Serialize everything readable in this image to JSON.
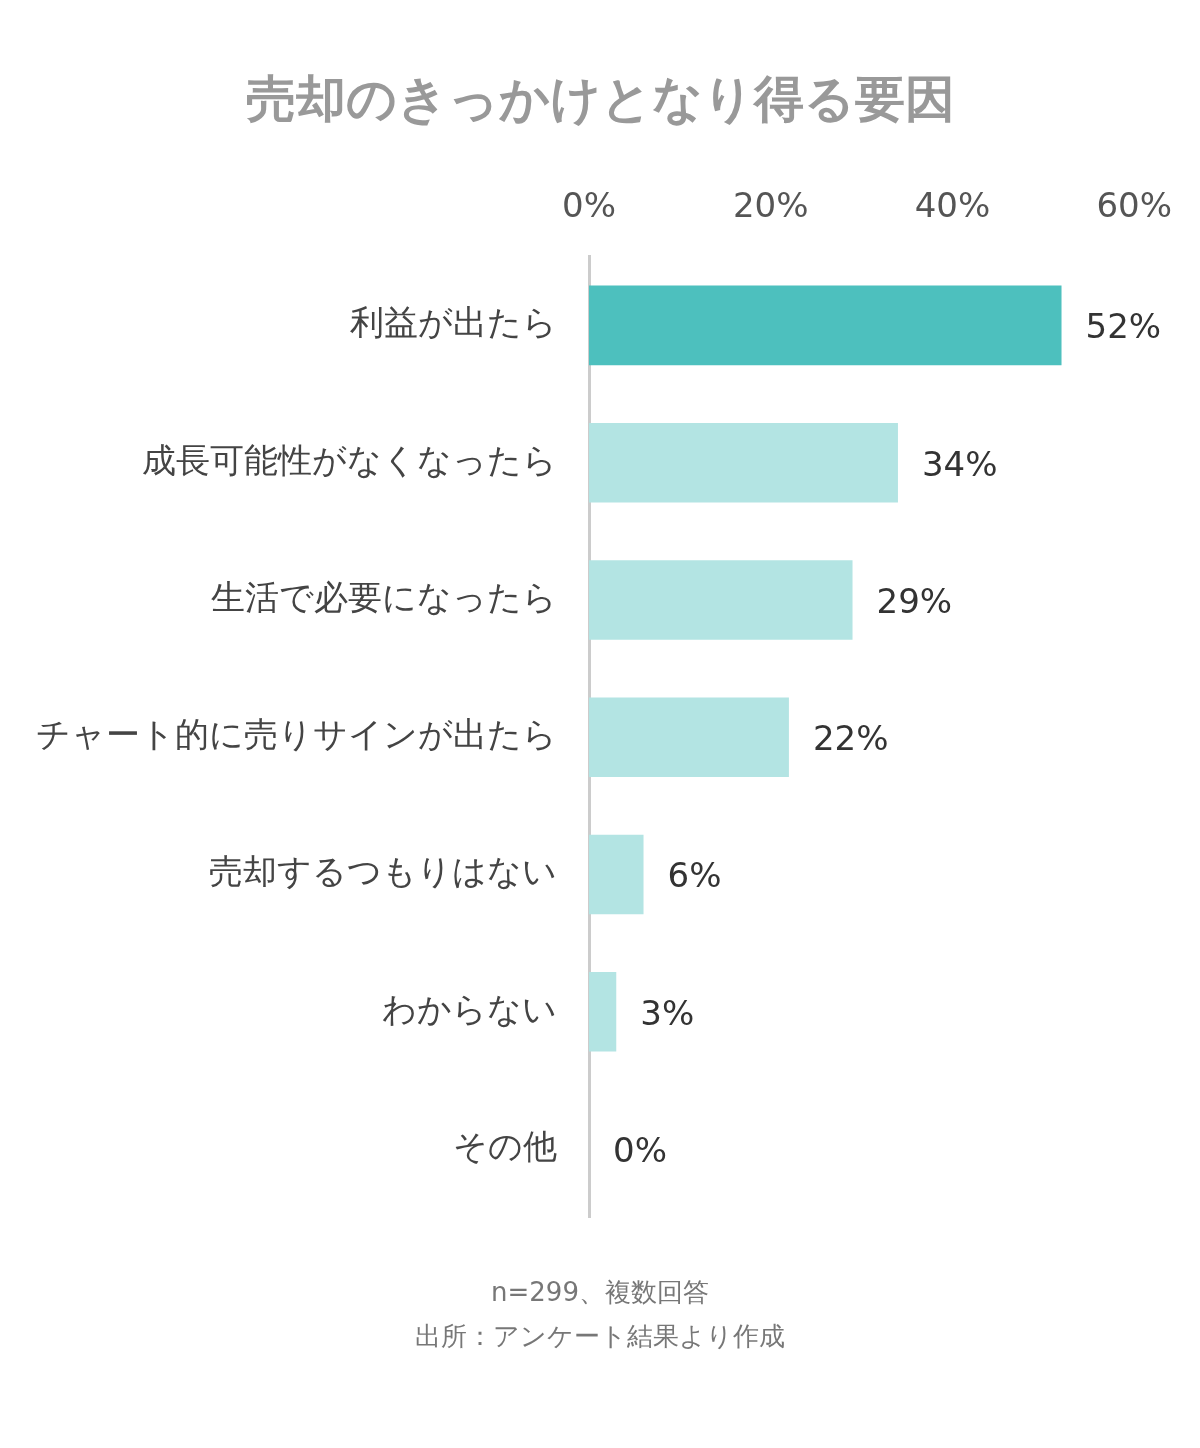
{
  "chart_data": {
    "type": "bar",
    "orientation": "horizontal",
    "title": "売却のきっかけとなり得る要因",
    "categories": [
      "利益が出たら",
      "成長可能性がなくなったら",
      "生活で必要になったら",
      "チャート的に売りサインが出たら",
      "売却するつもりはない",
      "わからない",
      "その他"
    ],
    "values": [
      52,
      34,
      29,
      22,
      6,
      3,
      0
    ],
    "colors": [
      "#4dc0be",
      "#b3e4e3",
      "#b3e4e3",
      "#b3e4e3",
      "#b3e4e3",
      "#b3e4e3",
      "#b3e4e3"
    ],
    "value_labels": [
      "52%",
      "34%",
      "29%",
      "22%",
      "6%",
      "3%",
      "0%"
    ],
    "xlim": [
      0,
      60
    ],
    "xticks": [
      {
        "value": 0,
        "label": "0%"
      },
      {
        "value": 20,
        "label": "20%"
      },
      {
        "value": 40,
        "label": "40%"
      },
      {
        "value": 60,
        "label": "60%"
      }
    ],
    "grid": false,
    "legend": false,
    "annotations": [
      "n=299、複数回答",
      "出所：アンケート結果より作成"
    ]
  }
}
